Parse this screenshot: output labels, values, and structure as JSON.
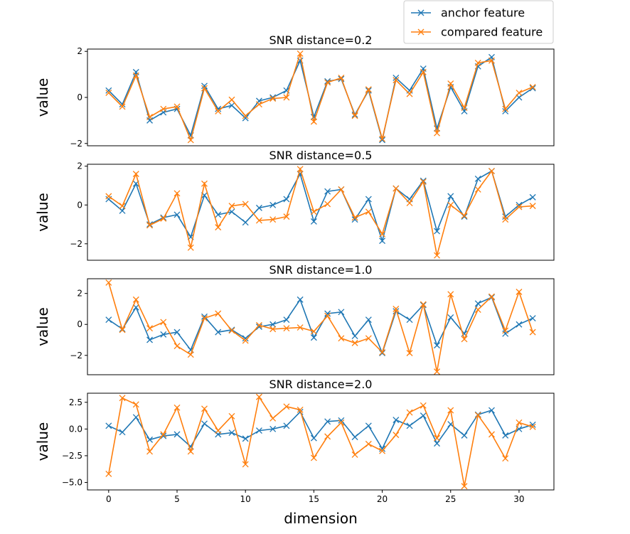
{
  "chart_data": {
    "type": "line",
    "xlabel": "dimension",
    "x_ticks": [
      0,
      5,
      10,
      15,
      20,
      25,
      30
    ],
    "x": [
      0,
      1,
      2,
      3,
      4,
      5,
      6,
      7,
      8,
      9,
      10,
      11,
      12,
      13,
      14,
      15,
      16,
      17,
      18,
      19,
      20,
      21,
      22,
      23,
      24,
      25,
      26,
      27,
      28,
      29,
      30,
      31
    ],
    "xlim": [
      -1.55,
      32.55
    ],
    "legend": {
      "placement": "top-right",
      "entries": [
        "anchor feature",
        "compared feature"
      ]
    },
    "colors": {
      "anchor": "#1f77b4",
      "compared": "#ff7f0e"
    },
    "marker": "x",
    "anchor": [
      0.3,
      -0.3,
      1.1,
      -1.0,
      -0.65,
      -0.5,
      -1.65,
      0.5,
      -0.5,
      -0.35,
      -0.9,
      -0.15,
      0.0,
      0.3,
      1.6,
      -0.85,
      0.7,
      0.8,
      -0.75,
      0.3,
      -1.85,
      0.85,
      0.3,
      1.25,
      -1.35,
      0.45,
      -0.6,
      1.35,
      1.75,
      -0.6,
      0.0,
      0.4
    ],
    "subplots": [
      {
        "title": "SNR distance=0.2",
        "ylabel": "value",
        "ylim": [
          -2.1,
          2.1
        ],
        "yticks": [
          -2,
          0,
          2
        ],
        "ytick_labels": [
          "−2",
          "0",
          "2"
        ],
        "compared": [
          0.2,
          -0.4,
          0.95,
          -0.85,
          -0.5,
          -0.4,
          -1.85,
          0.4,
          -0.6,
          -0.1,
          -0.8,
          -0.3,
          -0.05,
          0.0,
          1.9,
          -1.05,
          0.65,
          0.85,
          -0.8,
          0.35,
          -1.8,
          0.75,
          0.15,
          1.1,
          -1.55,
          0.6,
          -0.45,
          1.5,
          1.6,
          -0.5,
          0.2,
          0.45
        ]
      },
      {
        "title": "SNR distance=0.5",
        "ylabel": "value",
        "ylim": [
          -2.85,
          2.1
        ],
        "yticks": [
          -2,
          0,
          2
        ],
        "ytick_labels": [
          "−2",
          "0",
          "2"
        ],
        "compared": [
          0.45,
          -0.05,
          1.6,
          -1.05,
          -0.7,
          0.6,
          -2.2,
          1.1,
          -1.15,
          -0.05,
          0.05,
          -0.8,
          -0.75,
          -0.6,
          1.85,
          -0.35,
          0.05,
          0.8,
          -0.65,
          -0.35,
          -1.5,
          0.85,
          0.1,
          1.2,
          -2.6,
          0.0,
          -0.55,
          0.8,
          1.75,
          -0.75,
          -0.1,
          -0.05
        ]
      },
      {
        "title": "SNR distance=1.0",
        "ylabel": "value",
        "ylim": [
          -3.25,
          2.95
        ],
        "yticks": [
          -2,
          0,
          2
        ],
        "ytick_labels": [
          "−2",
          "0",
          "2"
        ],
        "compared": [
          2.7,
          -0.35,
          1.6,
          -0.25,
          0.15,
          -1.4,
          -1.95,
          0.4,
          0.7,
          -0.4,
          -1.05,
          -0.05,
          -0.3,
          -0.25,
          -0.2,
          -0.45,
          0.55,
          -0.9,
          -1.2,
          -0.9,
          -1.8,
          1.0,
          -1.85,
          1.3,
          -3.05,
          1.95,
          -0.95,
          0.95,
          1.8,
          -0.4,
          2.1,
          -0.5
        ]
      },
      {
        "title": "SNR distance=2.0",
        "ylabel": "value",
        "ylim": [
          -5.7,
          3.35
        ],
        "yticks": [
          -5.0,
          -2.5,
          0.0,
          2.5
        ],
        "ytick_labels": [
          "−5.0",
          "−2.5",
          "0.0",
          "2.5"
        ],
        "compared": [
          -4.2,
          2.9,
          2.3,
          -2.1,
          -0.5,
          2.0,
          -2.1,
          1.9,
          -0.15,
          1.2,
          -3.3,
          3.0,
          1.0,
          2.1,
          1.8,
          -2.7,
          -0.7,
          0.6,
          -2.4,
          -1.4,
          -2.05,
          -0.55,
          1.55,
          2.2,
          -0.85,
          1.75,
          -5.35,
          1.3,
          -0.5,
          -2.75,
          0.6,
          0.2
        ]
      }
    ]
  }
}
